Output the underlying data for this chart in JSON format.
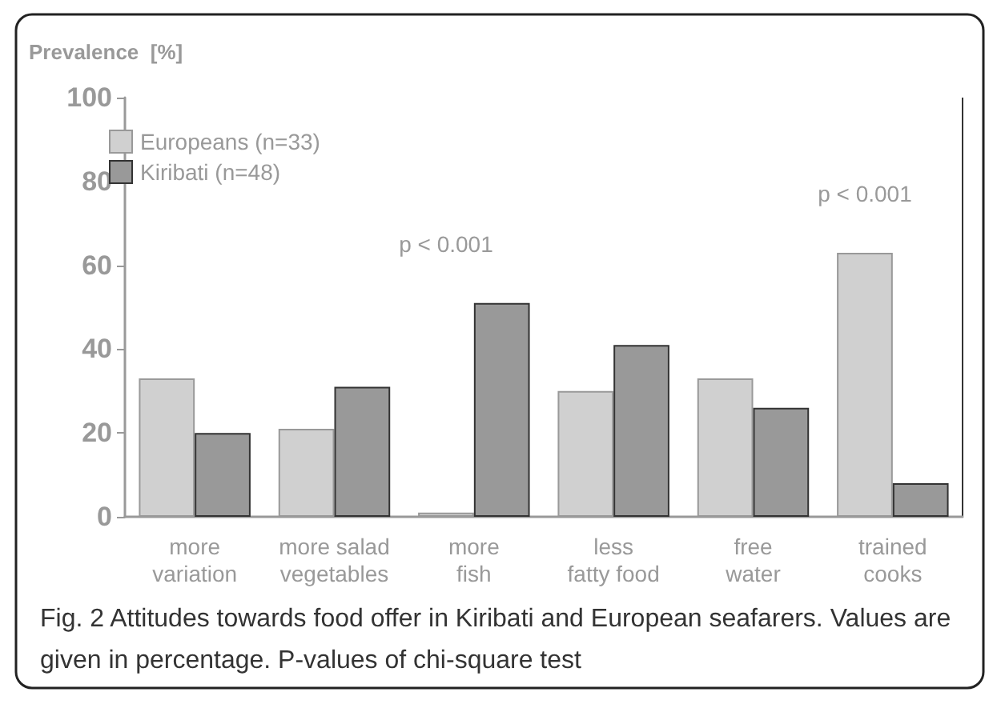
{
  "chart_data": {
    "type": "bar",
    "ylabel": "Prevalence  [%]",
    "categories": [
      "more\nvariation",
      "more salad\nvegetables",
      "more\nfish",
      "less\nfatty food",
      "free\nwater",
      "trained\ncooks"
    ],
    "series": [
      {
        "name": "Europeans (n=33)",
        "color": "#d0d0d0",
        "values": [
          33,
          21,
          1,
          30,
          33,
          63
        ]
      },
      {
        "name": "Kiribati (n=48)",
        "color": "#999999",
        "values": [
          20,
          31,
          51,
          41,
          26,
          8
        ]
      }
    ],
    "ylim": [
      0,
      100
    ],
    "yticks": [
      0,
      20,
      40,
      60,
      80,
      100
    ],
    "grid": false,
    "legend": "top left",
    "annotations": [
      {
        "text": "p < 0.001",
        "x": "more\nfish",
        "y": 51
      },
      {
        "text": "p < 0.001",
        "x": "trained\ncooks",
        "y": 63
      },
      "Fig. 2 Attitudes towards food offer in Kiribati and European seafarers. Values are given in percentage. P-values of chi-square test"
    ]
  }
}
